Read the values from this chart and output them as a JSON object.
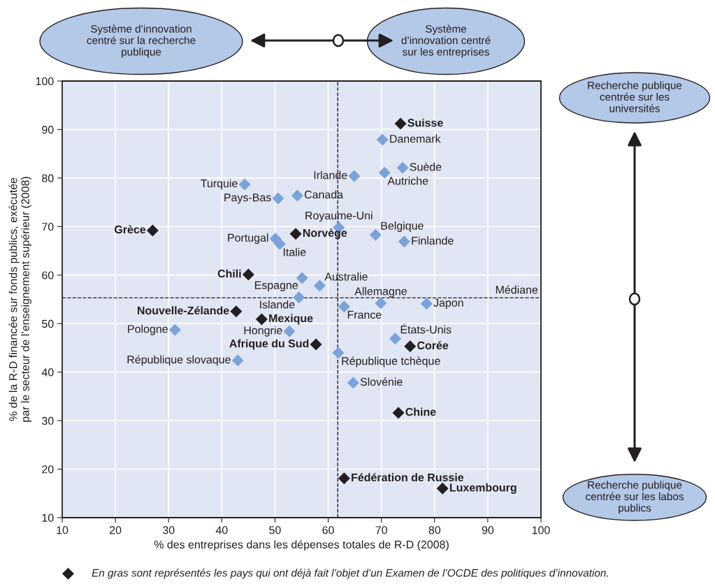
{
  "chart_data": {
    "type": "scatter",
    "xlabel": "% des entreprises dans les dépenses totales de R-D (2008)",
    "ylabel": "% de la R-D financée sur fonds publics, exécutée\npar le secteur de l’enseignement supérieur (2008)",
    "xlim": [
      10,
      100
    ],
    "ylim": [
      10,
      100
    ],
    "xticks": [
      10,
      20,
      30,
      40,
      50,
      60,
      70,
      80,
      90,
      100
    ],
    "yticks": [
      10,
      20,
      30,
      40,
      50,
      60,
      70,
      80,
      90,
      100
    ],
    "grid": true,
    "marker": "diamond",
    "legend": "bottom",
    "series": [
      {
        "color": "#7ba3d8",
        "x": [
          70.2,
          74.0,
          70.6,
          64.9,
          44.3,
          54.2,
          50.6,
          62.0,
          68.9,
          50.1,
          50.9,
          74.3,
          55.1,
          58.4,
          54.5,
          63.0,
          69.9,
          78.5,
          31.2,
          52.7,
          72.6,
          61.9,
          43.0,
          64.7
        ],
        "values": [
          87.9,
          82.1,
          81.1,
          80.4,
          78.7,
          76.4,
          75.8,
          69.8,
          68.3,
          67.5,
          66.4,
          66.9,
          59.4,
          57.8,
          55.4,
          53.5,
          54.2,
          54.1,
          48.7,
          48.4,
          46.9,
          44.0,
          42.4,
          37.8
        ]
      },
      {
        "name": "En gras sont représentés les pays qui ont déjà fait l’objet d’un Examen de l’OCDE des politiques d’innovation.",
        "color": "#231f20",
        "x": [
          73.6,
          27.0,
          53.9,
          45.0,
          42.7,
          47.5,
          57.7,
          75.4,
          73.2,
          63.0,
          81.5
        ],
        "values": [
          91.2,
          69.2,
          68.5,
          60.1,
          52.5,
          50.9,
          45.7,
          45.3,
          31.6,
          18.1,
          16.0
        ]
      }
    ],
    "ref_lines": [
      {
        "axis": "x",
        "value": 61.8,
        "line_style": "dashed",
        "color": "#231f20"
      },
      {
        "axis": "y",
        "value": 55.3,
        "label": "Médiane",
        "line_style": "dashed",
        "color": "#231f20"
      }
    ],
    "annotations": [
      "Système d’innovation\ncentré sur la recherche\npublique",
      "Système\nd’innovation centré\nsur les entreprises",
      "Recherche publique\ncentrée sur les\nuniversités",
      "Recherche publique\ncentrée sur les labos\npublics",
      {
        "text": "Suisse",
        "x": 73.6,
        "y": 91.2
      },
      {
        "text": "Danemark",
        "x": 70.2,
        "y": 87.9
      },
      {
        "text": "Suède",
        "x": 74.0,
        "y": 82.1
      },
      {
        "text": "Autriche",
        "x": 70.6,
        "y": 81.1
      },
      {
        "text": "Irlande",
        "x": 64.9,
        "y": 80.4
      },
      {
        "text": "Turquie",
        "x": 44.3,
        "y": 78.7
      },
      {
        "text": "Canada",
        "x": 54.2,
        "y": 76.4
      },
      {
        "text": "Pays-Bas",
        "x": 50.6,
        "y": 75.8
      },
      {
        "text": "Royaume-Uni",
        "x": 62.0,
        "y": 69.8
      },
      {
        "text": "Grèce",
        "x": 27.0,
        "y": 69.2
      },
      {
        "text": "Norvège",
        "x": 53.9,
        "y": 68.5
      },
      {
        "text": "Belgique",
        "x": 68.9,
        "y": 68.3
      },
      {
        "text": "Portugal",
        "x": 50.1,
        "y": 67.5
      },
      {
        "text": "Italie",
        "x": 50.9,
        "y": 66.4
      },
      {
        "text": "Finlande",
        "x": 74.3,
        "y": 66.9
      },
      {
        "text": "Chili",
        "x": 45.0,
        "y": 60.1
      },
      {
        "text": "Espagne",
        "x": 55.1,
        "y": 59.4
      },
      {
        "text": "Australie",
        "x": 58.4,
        "y": 57.8
      },
      {
        "text": "Islande",
        "x": 54.5,
        "y": 55.4
      },
      {
        "text": "France",
        "x": 63.0,
        "y": 53.5
      },
      {
        "text": "Allemagne",
        "x": 69.9,
        "y": 54.2
      },
      {
        "text": "Japon",
        "x": 78.5,
        "y": 54.1
      },
      {
        "text": "Nouvelle-Zélande",
        "x": 42.7,
        "y": 52.5
      },
      {
        "text": "Mexique",
        "x": 47.5,
        "y": 50.9
      },
      {
        "text": "Pologne",
        "x": 31.2,
        "y": 48.7
      },
      {
        "text": "Hongrie",
        "x": 52.7,
        "y": 48.4
      },
      {
        "text": "États-Unis",
        "x": 72.6,
        "y": 46.9
      },
      {
        "text": "Afrique du Sud",
        "x": 57.7,
        "y": 45.7
      },
      {
        "text": "Corée",
        "x": 75.4,
        "y": 45.3
      },
      {
        "text": "République tchèque",
        "x": 61.9,
        "y": 44.0
      },
      {
        "text": "République slovaque",
        "x": 43.0,
        "y": 42.4
      },
      {
        "text": "Slovénie",
        "x": 64.7,
        "y": 37.8
      },
      {
        "text": "Chine",
        "x": 73.2,
        "y": 31.6
      },
      {
        "text": "Fédération de Russie",
        "x": 63.0,
        "y": 18.1
      },
      {
        "text": "Luxembourg",
        "x": 81.5,
        "y": 16.0
      }
    ]
  }
}
